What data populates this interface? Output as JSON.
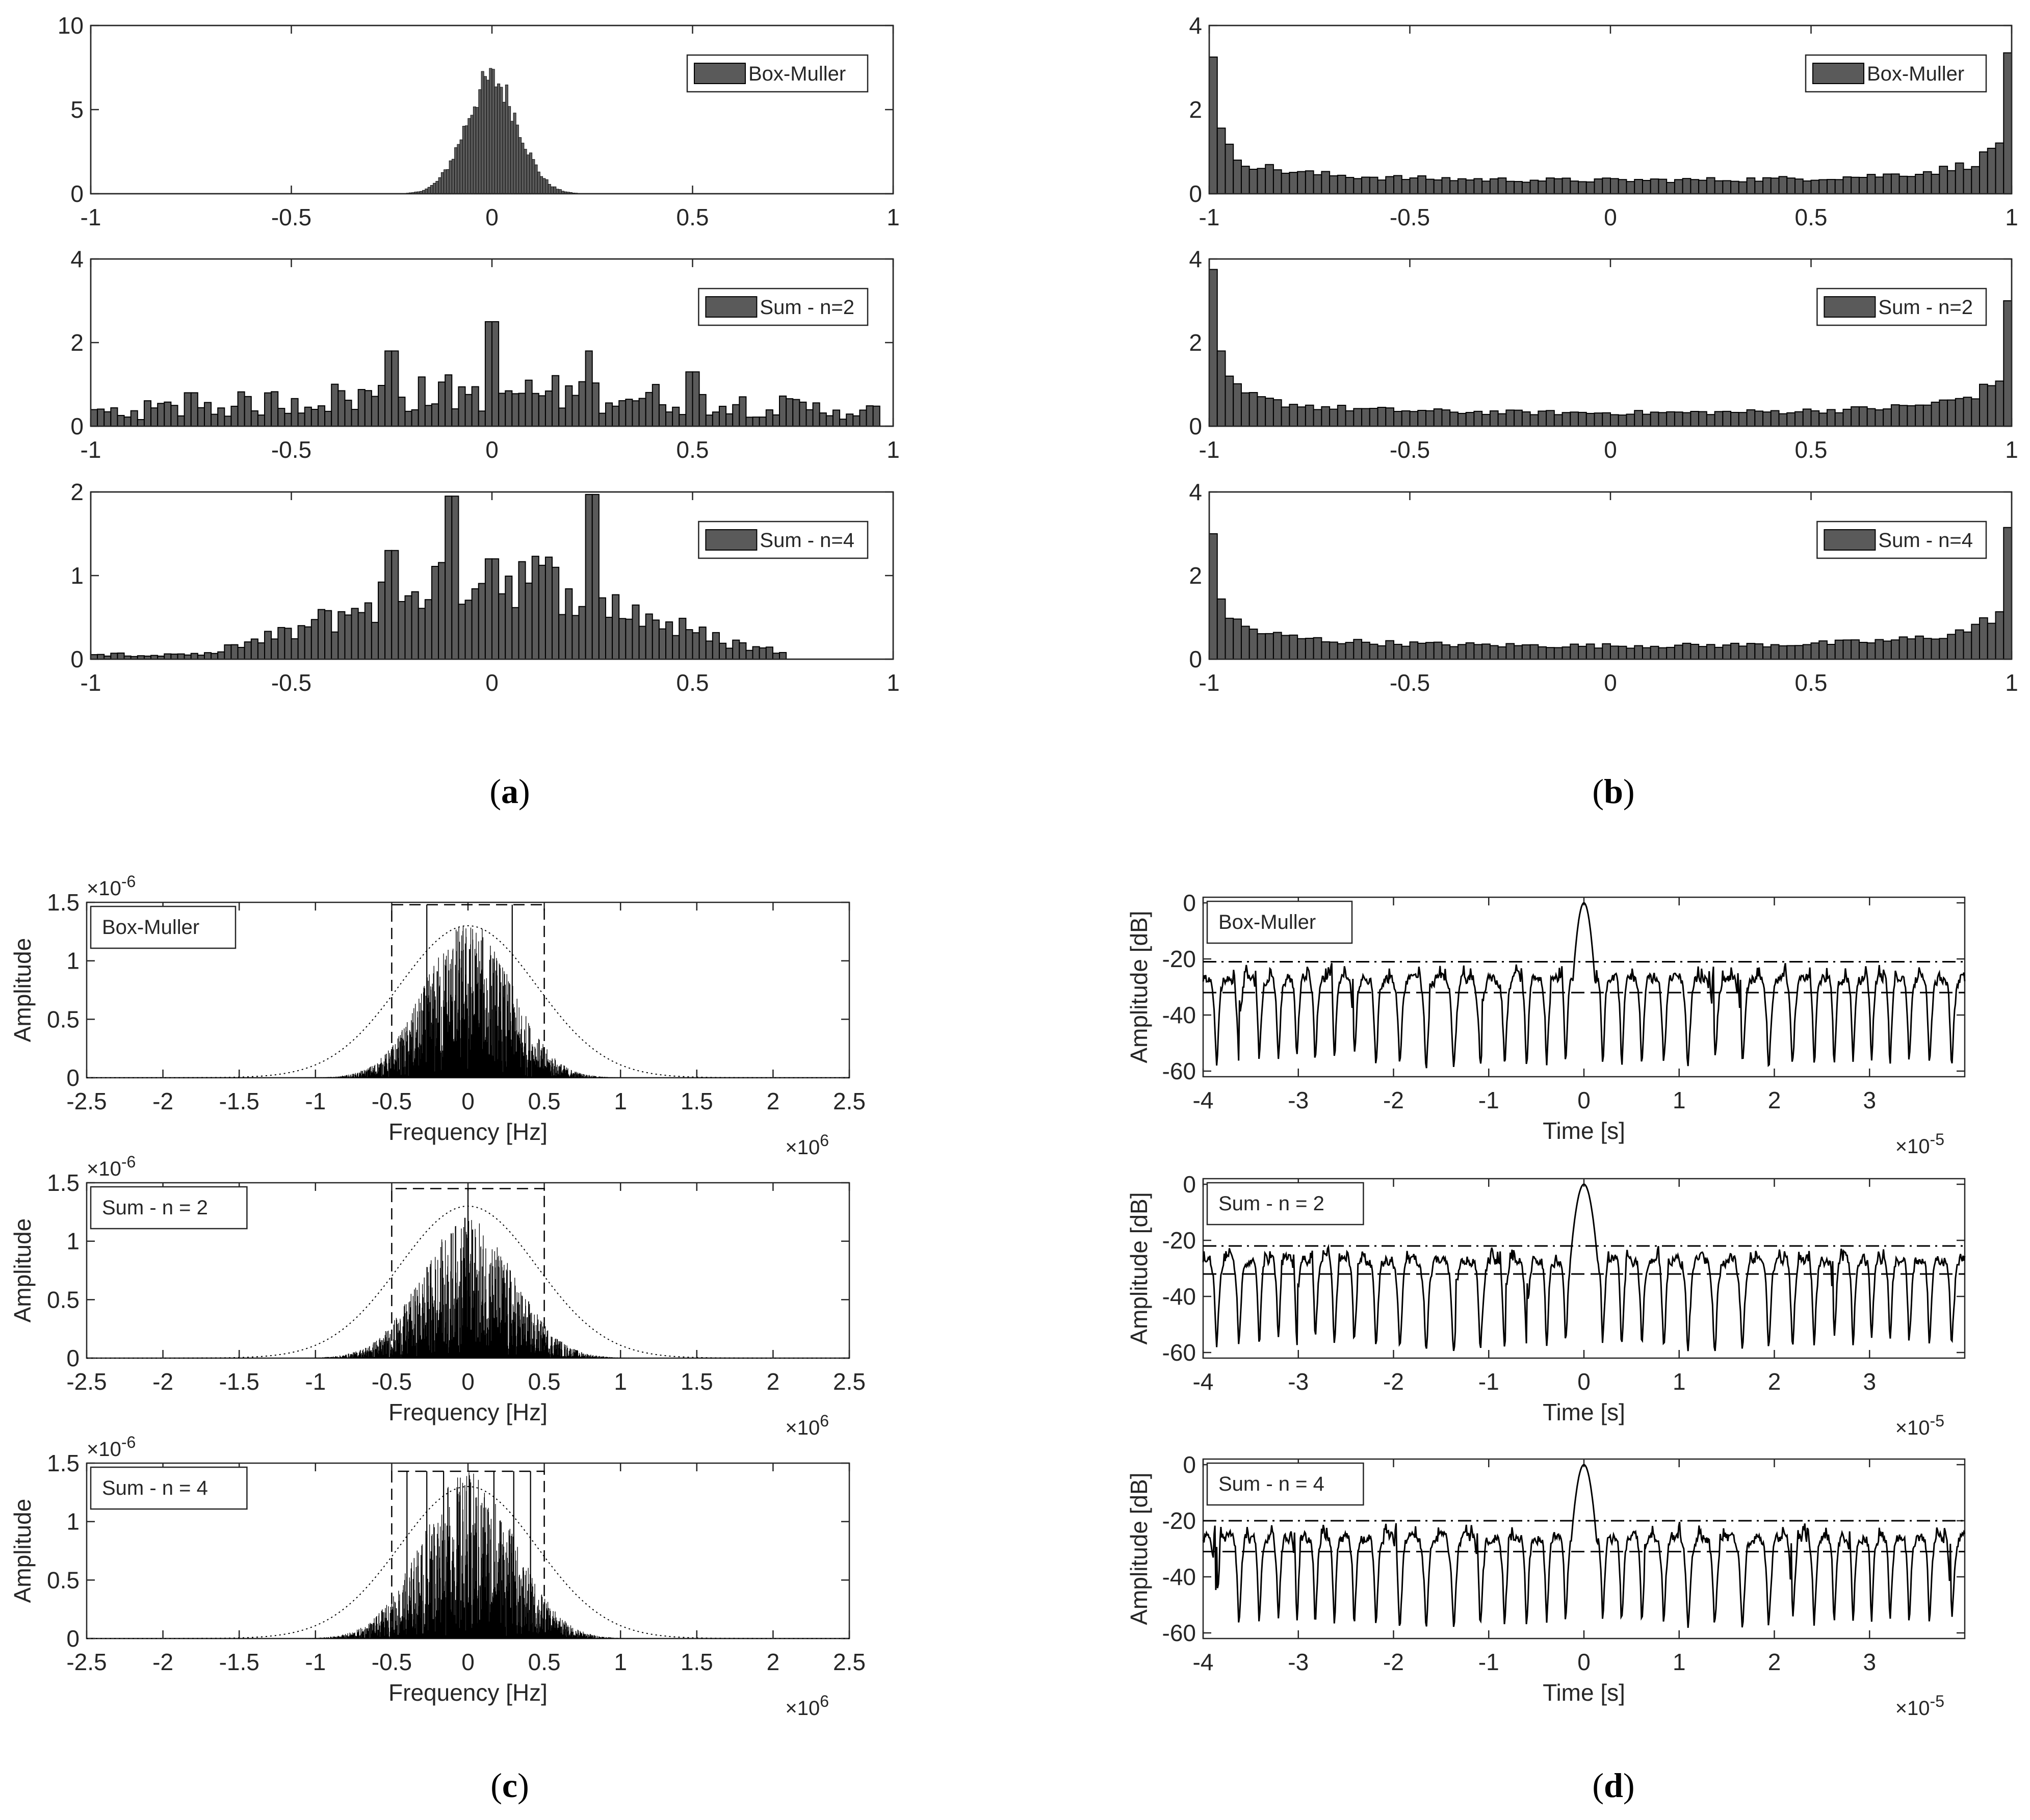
{
  "figure": {
    "panel_captions": [
      {
        "letter": "a"
      },
      {
        "letter": "b"
      },
      {
        "letter": "c"
      },
      {
        "letter": "d"
      }
    ]
  },
  "chart_data": [
    {
      "panel": "a",
      "type": "bar",
      "legend": "Box-Muller",
      "legend_location": "top-right",
      "xlim": [
        -1,
        1
      ],
      "ylim": [
        0,
        10
      ],
      "xticks": [
        -1,
        -0.5,
        0,
        0.5,
        1
      ],
      "yticks": [
        0,
        5,
        10
      ],
      "bar_color": "#5a5a5a",
      "shape": "gaussian",
      "center": 0,
      "sigma": 0.065,
      "peak": 6.8,
      "x": [
        -0.2,
        -0.15,
        -0.1,
        -0.05,
        0,
        0.05,
        0.1,
        0.15,
        0.2
      ],
      "values": [
        0.2,
        0.9,
        2.2,
        4.6,
        6.8,
        4.6,
        2.2,
        0.9,
        0.2
      ]
    },
    {
      "panel": "a",
      "type": "bar",
      "legend": "Sum - n=2",
      "legend_location": "top-right",
      "xlim": [
        -1,
        1
      ],
      "ylim": [
        0,
        4
      ],
      "xticks": [
        -1,
        -0.5,
        0,
        0.5,
        1
      ],
      "yticks": [
        0,
        2,
        4
      ],
      "bar_color": "#5a5a5a",
      "x": [
        -0.99,
        -0.95,
        -0.87,
        -0.75,
        -0.64,
        -0.5,
        -0.25,
        -0.2,
        -0.02,
        0.0,
        0.24,
        0.25,
        0.5,
        0.73,
        0.95
      ],
      "values": [
        0.1,
        0.2,
        0.6,
        0.8,
        0.2,
        1.0,
        1.8,
        1.0,
        2.5,
        2.0,
        1.8,
        0.8,
        1.3,
        0.5,
        0.2
      ]
    },
    {
      "panel": "a",
      "type": "bar",
      "legend": "Sum - n=4",
      "legend_location": "top-right",
      "xlim": [
        -1,
        1
      ],
      "ylim": [
        0,
        2
      ],
      "xticks": [
        -1,
        -0.5,
        0,
        0.5,
        1
      ],
      "yticks": [
        0,
        1,
        2
      ],
      "bar_color": "#5a5a5a",
      "x": [
        -0.99,
        -0.9,
        -0.75,
        -0.6,
        -0.5,
        -0.4,
        -0.25,
        -0.1,
        0.0,
        0.1,
        0.25,
        0.4,
        0.5,
        0.6,
        0.72
      ],
      "values": [
        0.05,
        0.05,
        0.05,
        0.3,
        0.8,
        0.9,
        1.3,
        1.95,
        1.2,
        1.4,
        1.97,
        0.9,
        0.6,
        0.3,
        0.05
      ]
    },
    {
      "panel": "b",
      "type": "bar",
      "legend": "Box-Muller",
      "legend_location": "top-right",
      "xlim": [
        -1,
        1
      ],
      "ylim": [
        0,
        4
      ],
      "xticks": [
        -1,
        -0.5,
        0,
        0.5,
        1
      ],
      "yticks": [
        0,
        2,
        4
      ],
      "bar_color": "#5a5a5a",
      "shape": "arcsine",
      "left_edge": 3.25,
      "right_edge": 3.35,
      "x": [
        -1,
        -0.9,
        -0.5,
        0,
        0.5,
        0.9,
        1
      ],
      "values": [
        3.25,
        0.7,
        0.35,
        0.32,
        0.35,
        0.7,
        3.35
      ]
    },
    {
      "panel": "b",
      "type": "bar",
      "legend": "Sum - n=2",
      "legend_location": "top-right",
      "xlim": [
        -1,
        1
      ],
      "ylim": [
        0,
        4
      ],
      "xticks": [
        -1,
        -0.5,
        0,
        0.5,
        1
      ],
      "yticks": [
        0,
        2,
        4
      ],
      "bar_color": "#5a5a5a",
      "shape": "arcsine",
      "left_edge": 3.75,
      "right_edge": 3.0,
      "x": [
        -1,
        -0.9,
        -0.5,
        0,
        0.5,
        0.9,
        1
      ],
      "values": [
        3.75,
        0.8,
        0.4,
        0.35,
        0.4,
        0.8,
        3.0
      ]
    },
    {
      "panel": "b",
      "type": "bar",
      "legend": "Sum - n=4",
      "legend_location": "top-right",
      "xlim": [
        -1,
        1
      ],
      "ylim": [
        0,
        4
      ],
      "xticks": [
        -1,
        -0.5,
        0,
        0.5,
        1
      ],
      "yticks": [
        0,
        2,
        4
      ],
      "bar_color": "#5a5a5a",
      "shape": "arcsine",
      "left_edge": 3.0,
      "right_edge": 3.15,
      "x": [
        -1,
        -0.9,
        -0.5,
        0,
        0.5,
        0.9,
        1
      ],
      "values": [
        3.0,
        0.7,
        0.45,
        0.35,
        0.45,
        0.7,
        3.15
      ]
    },
    {
      "panel": "c",
      "type": "line",
      "legend": "Box-Muller",
      "legend_location": "top-left",
      "xlabel": "Frequency [Hz]",
      "ylabel": "Amplitude",
      "x_exponent": "×10",
      "x_exponent_power": "6",
      "y_exponent": "×10",
      "y_exponent_power": "-6",
      "xlim": [
        -2.5,
        2.5
      ],
      "ylim": [
        0,
        1.5
      ],
      "xticks": [
        -2.5,
        -2,
        -1.5,
        -1,
        -0.5,
        0,
        0.5,
        1,
        1.5,
        2,
        2.5
      ],
      "yticks": [
        0,
        0.5,
        1,
        1.5
      ],
      "envelope_peak": 1.3,
      "envelope_sigma": 0.45,
      "spectrum_peak": 0.85,
      "spectrum_sigma": 0.28,
      "band_box": {
        "x": [
          -0.5,
          0.5
        ],
        "top": 1.48
      },
      "tall_peaks": [
        {
          "x": -0.27,
          "y": 1.48
        },
        {
          "x": 0.29,
          "y": 1.48
        },
        {
          "x": 0.01,
          "y": 1.1
        }
      ]
    },
    {
      "panel": "c",
      "type": "line",
      "legend": "Sum - n = 2",
      "legend_location": "top-left",
      "xlabel": "Frequency [Hz]",
      "ylabel": "Amplitude",
      "x_exponent": "×10",
      "x_exponent_power": "6",
      "y_exponent": "×10",
      "y_exponent_power": "-6",
      "xlim": [
        -2.5,
        2.5
      ],
      "ylim": [
        0,
        1.5
      ],
      "xticks": [
        -2.5,
        -2,
        -1.5,
        -1,
        -0.5,
        0,
        0.5,
        1,
        1.5,
        2,
        2.5
      ],
      "yticks": [
        0,
        0.5,
        1,
        1.5
      ],
      "envelope_peak": 1.3,
      "envelope_sigma": 0.45,
      "spectrum_peak": 0.75,
      "spectrum_sigma": 0.3,
      "band_box": {
        "x": [
          -0.5,
          0.5
        ],
        "top": 1.45
      },
      "tall_peaks": [
        {
          "x": 0.0,
          "y": 1.45
        },
        {
          "x": -0.02,
          "y": 1.2
        },
        {
          "x": 0.03,
          "y": 1.1
        }
      ]
    },
    {
      "panel": "c",
      "type": "line",
      "legend": "Sum - n = 4",
      "legend_location": "top-left",
      "xlabel": "Frequency [Hz]",
      "ylabel": "Amplitude",
      "x_exponent": "×10",
      "x_exponent_power": "6",
      "y_exponent": "×10",
      "y_exponent_power": "-6",
      "xlim": [
        -2.5,
        2.5
      ],
      "ylim": [
        0,
        1.5
      ],
      "xticks": [
        -2.5,
        -2,
        -1.5,
        -1,
        -0.5,
        0,
        0.5,
        1,
        1.5,
        2,
        2.5
      ],
      "yticks": [
        0,
        0.5,
        1,
        1.5
      ],
      "envelope_peak": 1.3,
      "envelope_sigma": 0.45,
      "spectrum_peak": 0.9,
      "spectrum_sigma": 0.3,
      "band_box": {
        "x": [
          -0.5,
          0.5
        ],
        "top": 1.43
      },
      "tall_peaks": [
        {
          "x": -0.4,
          "y": 1.43
        },
        {
          "x": -0.27,
          "y": 1.43
        },
        {
          "x": -0.16,
          "y": 1.43
        },
        {
          "x": 0.17,
          "y": 1.43
        },
        {
          "x": 0.3,
          "y": 1.43
        },
        {
          "x": 0.41,
          "y": 1.43
        }
      ]
    },
    {
      "panel": "d",
      "type": "line",
      "legend": "Box-Muller",
      "legend_location": "top-left",
      "xlabel": "Time [s]",
      "ylabel": "Amplitude [dB]",
      "x_exponent": "×10",
      "x_exponent_power": "-5",
      "xlim": [
        -4,
        4
      ],
      "ylim": [
        -62,
        2
      ],
      "xticks": [
        -4,
        -3,
        -2,
        -1,
        0,
        1,
        2,
        3
      ],
      "yticks": [
        -60,
        -40,
        -20,
        0
      ],
      "dashdot_level": -21,
      "dashed_level": -32,
      "mainlobe_peak": 0,
      "mainlobe_halfwidth": 0.12
    },
    {
      "panel": "d",
      "type": "line",
      "legend": "Sum - n = 2",
      "legend_location": "top-left",
      "xlabel": "Time [s]",
      "ylabel": "Amplitude [dB]",
      "x_exponent": "×10",
      "x_exponent_power": "-5",
      "xlim": [
        -4,
        4
      ],
      "ylim": [
        -62,
        2
      ],
      "xticks": [
        -4,
        -3,
        -2,
        -1,
        0,
        1,
        2,
        3
      ],
      "yticks": [
        -60,
        -40,
        -20,
        0
      ],
      "dashdot_level": -22,
      "dashed_level": -32,
      "mainlobe_peak": 0,
      "mainlobe_halfwidth": 0.15
    },
    {
      "panel": "d",
      "type": "line",
      "legend": "Sum - n = 4",
      "legend_location": "top-left",
      "xlabel": "Time [s]",
      "ylabel": "Amplitude [dB]",
      "x_exponent": "×10",
      "x_exponent_power": "-5",
      "xlim": [
        -4,
        4
      ],
      "ylim": [
        -62,
        2
      ],
      "xticks": [
        -4,
        -3,
        -2,
        -1,
        0,
        1,
        2,
        3
      ],
      "yticks": [
        -60,
        -40,
        -20,
        0
      ],
      "dashdot_level": -20,
      "dashed_level": -31,
      "mainlobe_peak": 0,
      "mainlobe_halfwidth": 0.14
    }
  ]
}
